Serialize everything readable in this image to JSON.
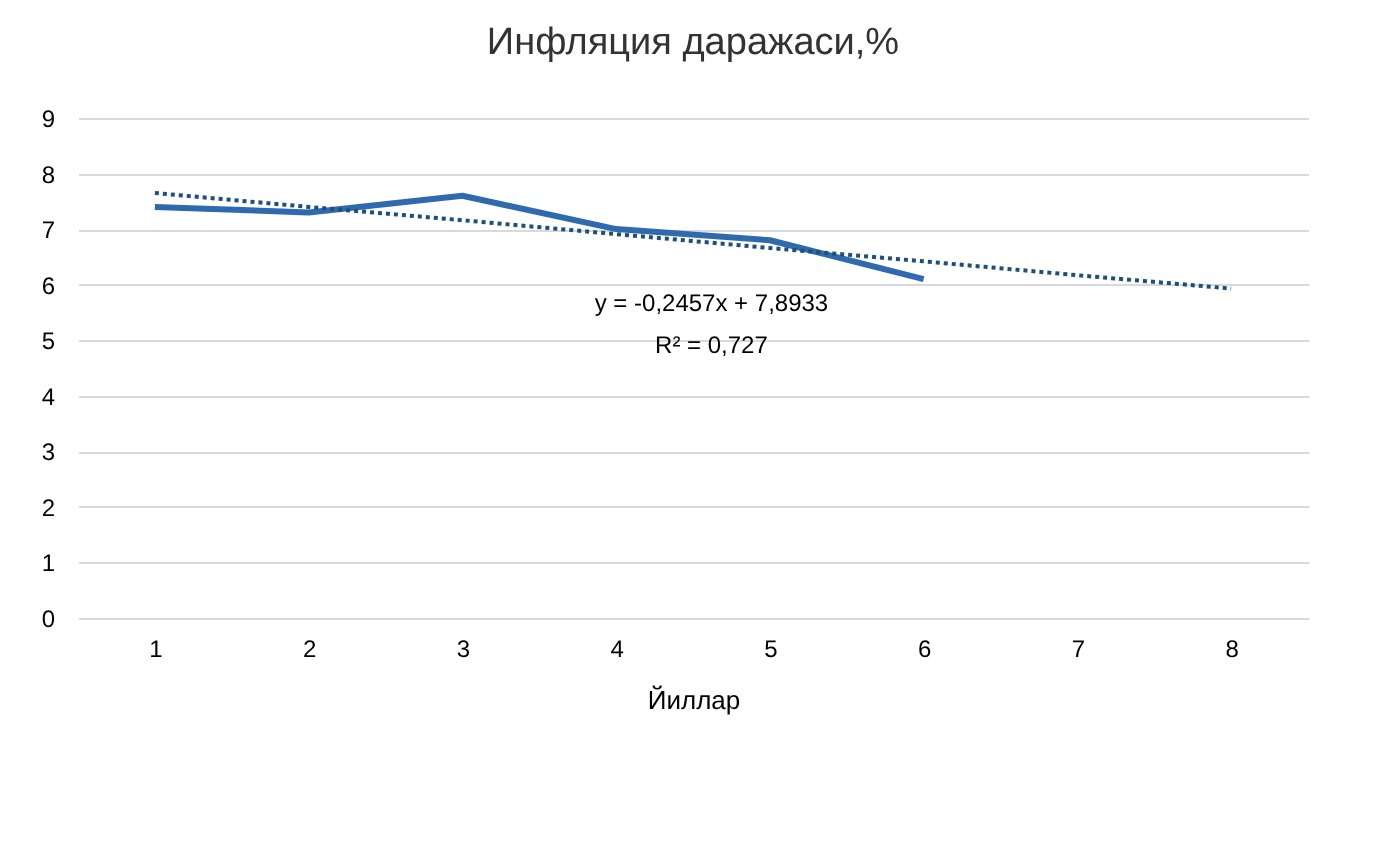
{
  "chart_data": {
    "type": "line",
    "title": "Инфляция даражаси,%",
    "xlabel": "Йиллар",
    "categories": [
      "1",
      "2",
      "3",
      "4",
      "5",
      "6",
      "7",
      "8"
    ],
    "series": [
      {
        "color": "#2e6aad",
        "values": [
          7.4,
          7.3,
          7.6,
          7.0,
          6.8,
          6.1,
          null,
          null
        ],
        "line_style": "solid"
      },
      {
        "type": "line",
        "color": "#1f4e79",
        "values": [
          7.65,
          7.4,
          7.16,
          6.91,
          6.66,
          6.42,
          6.17,
          5.93
        ],
        "line_style": "dotted"
      }
    ],
    "ylim": [
      0,
      9
    ],
    "yticks": [
      0,
      1,
      2,
      3,
      4,
      5,
      6,
      7,
      8,
      9
    ],
    "grid": "y",
    "marker": "none",
    "annotations": [
      "y = -0,2457x + 7,8933",
      "R² = 0,727"
    ]
  }
}
